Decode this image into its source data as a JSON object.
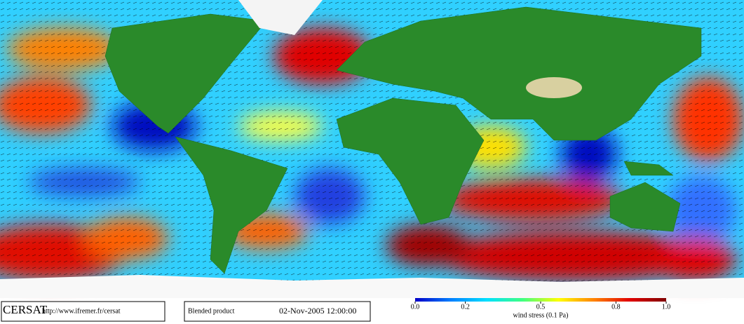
{
  "header": {
    "logo": "CERSAT",
    "url": "http://www.ifremer.fr/cersat",
    "product": "Blended product",
    "date": "02-Nov-2005 12:00:00"
  },
  "colorbar": {
    "label": "wind stress (0.1 Pa)",
    "range": [
      0,
      1
    ],
    "ticks": [
      {
        "value": 0,
        "label": "0.0"
      },
      0.2,
      0.5,
      0.8,
      {
        "value": 1,
        "label": "1.0"
      }
    ],
    "colors": [
      "#0000c8",
      "#0080ff",
      "#00e0ff",
      "#40ff80",
      "#ffff00",
      "#ff8000",
      "#e00000",
      "#800000"
    ]
  }
}
